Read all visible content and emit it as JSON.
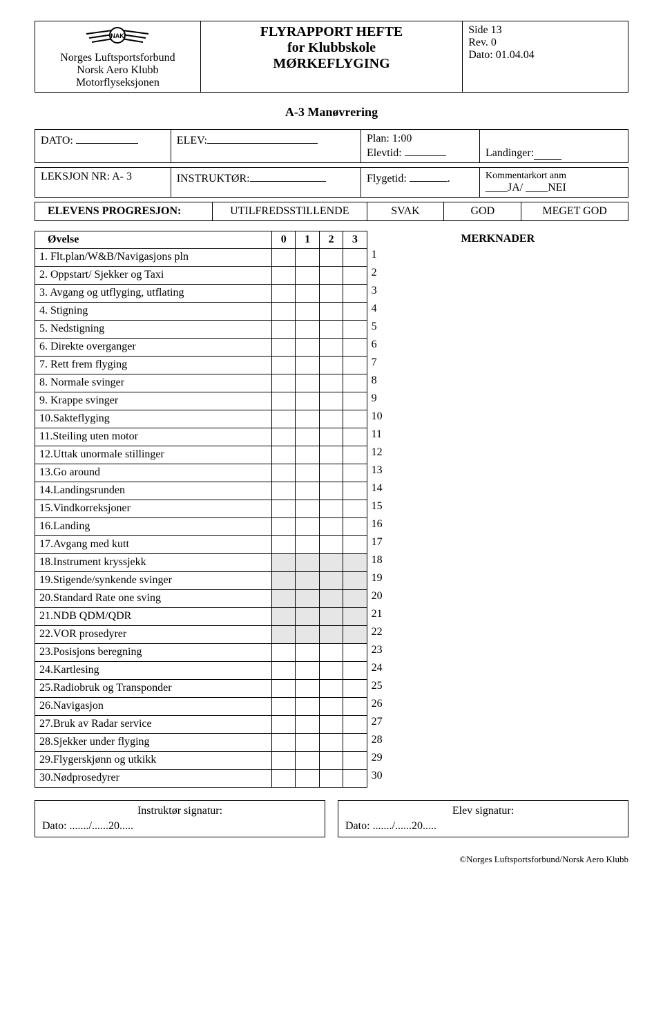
{
  "header": {
    "org1": "Norges Luftsportsforbund",
    "org2": "Norsk Aero Klubb",
    "org3": "Motorflyseksjonen",
    "title1": "FLYRAPPORT HEFTE",
    "title2": "for Klubbskole",
    "title3": "MØRKEFLYGING",
    "side": "Side 13",
    "rev": "Rev. 0",
    "dato": "Dato: 01.04.04"
  },
  "section_title": "A-3 Manøvrering",
  "info": {
    "dato_lbl": "DATO:",
    "elev_lbl": "ELEV:",
    "plan_lbl": "Plan: 1:00",
    "elevtid_lbl": "Elevtid:",
    "landinger_lbl": "Landinger:",
    "leksjon_lbl": "LEKSJON NR:  A- 3",
    "instruktor_lbl": "INSTRUKTØR:",
    "flygetid_lbl": "Flygetid:",
    "kommentar_lbl": "Kommentarkort anm",
    "ja_nei": "____JA/ ____NEI"
  },
  "prog": {
    "label": "ELEVENS PROGRESJON:",
    "c1": "UTILFREDSSTILLENDE",
    "c2": "SVAK",
    "c3": "GOD",
    "c4": "MEGET GOD"
  },
  "table": {
    "ovelse": "Øvelse",
    "h0": "0",
    "h1": "1",
    "h2": "2",
    "h3": "3",
    "merknader": "MERKNADER",
    "rows": [
      {
        "label": "1. Flt.plan/W&B/Navigasjons pln",
        "n": "1",
        "shaded": false
      },
      {
        "label": "2. Oppstart/ Sjekker og Taxi",
        "n": "2",
        "shaded": false
      },
      {
        "label": "3. Avgang og utflyging, utflating",
        "n": "3",
        "shaded": false
      },
      {
        "label": "4. Stigning",
        "n": "4",
        "shaded": false
      },
      {
        "label": "5. Nedstigning",
        "n": "5",
        "shaded": false
      },
      {
        "label": "6. Direkte overganger",
        "n": "6",
        "shaded": false
      },
      {
        "label": "7. Rett frem flyging",
        "n": "7",
        "shaded": false
      },
      {
        "label": "8. Normale svinger",
        "n": "8",
        "shaded": false
      },
      {
        "label": "9. Krappe svinger",
        "n": "9",
        "shaded": false
      },
      {
        "label": "10.Sakteflyging",
        "n": "10",
        "shaded": false
      },
      {
        "label": "11.Steiling uten motor",
        "n": "11",
        "shaded": false
      },
      {
        "label": "12.Uttak unormale stillinger",
        "n": "12",
        "shaded": false
      },
      {
        "label": "13.Go around",
        "n": "13",
        "shaded": false
      },
      {
        "label": "14.Landingsrunden",
        "n": "14",
        "shaded": false
      },
      {
        "label": "15.Vindkorreksjoner",
        "n": "15",
        "shaded": false
      },
      {
        "label": "16.Landing",
        "n": "16",
        "shaded": false
      },
      {
        "label": "17.Avgang med kutt",
        "n": "17",
        "shaded": false
      },
      {
        "label": "18.Instrument kryssjekk",
        "n": "18",
        "shaded": true
      },
      {
        "label": "19.Stigende/synkende svinger",
        "n": "19",
        "shaded": true
      },
      {
        "label": "20.Standard Rate one sving",
        "n": "20",
        "shaded": true
      },
      {
        "label": "21.NDB QDM/QDR",
        "n": "21",
        "shaded": true
      },
      {
        "label": "22.VOR prosedyrer",
        "n": "22",
        "shaded": true
      },
      {
        "label": "23.Posisjons beregning",
        "n": "23",
        "shaded": false
      },
      {
        "label": "24.Kartlesing",
        "n": "24",
        "shaded": false
      },
      {
        "label": "25.Radiobruk og Transponder",
        "n": "25",
        "shaded": false
      },
      {
        "label": "26.Navigasjon",
        "n": "26",
        "shaded": false
      },
      {
        "label": "27.Bruk av Radar service",
        "n": "27",
        "shaded": false
      },
      {
        "label": "28.Sjekker under flyging",
        "n": "28",
        "shaded": false
      },
      {
        "label": "29.Flygerskjønn og utkikk",
        "n": "29",
        "shaded": false
      },
      {
        "label": "30.Nødprosedyrer",
        "n": "30",
        "shaded": false
      }
    ]
  },
  "sig": {
    "instr": "Instruktør signatur:",
    "elev": "Elev signatur:",
    "date": "Dato: ......./......20....."
  },
  "footer": "©Norges Luftsportsforbund/Norsk Aero Klubb"
}
